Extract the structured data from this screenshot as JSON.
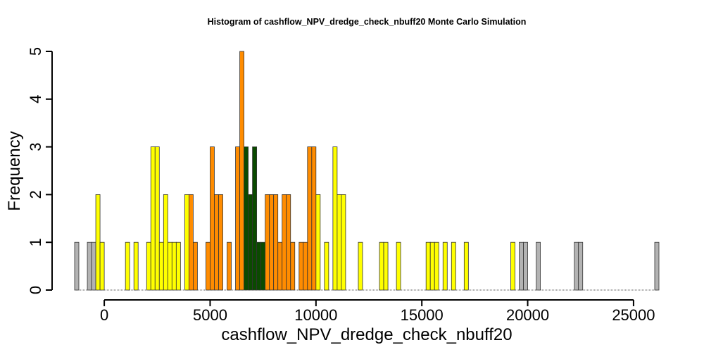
{
  "chart_data": {
    "type": "bar",
    "title": "Histogram of  cashflow_NPV_dredge_check_nbuff20  Monte Carlo Simulation",
    "xlabel": "cashflow_NPV_dredge_check_nbuff20",
    "ylabel": "Frequency",
    "xlim": [
      -1400,
      26200
    ],
    "ylim": [
      0,
      5
    ],
    "bin_width": 200,
    "x_ticks": [
      0,
      5000,
      10000,
      15000,
      20000,
      25000
    ],
    "x_tick_labels": [
      "0",
      "5000",
      "10000",
      "15000",
      "20000",
      "25000"
    ],
    "y_ticks": [
      0,
      1,
      2,
      3,
      4,
      5
    ],
    "y_tick_labels": [
      "0",
      "1",
      "2",
      "3",
      "4",
      "5"
    ],
    "grid": false,
    "colors": {
      "grey": "#b3b3b3",
      "yellow": "#ffff00",
      "orange": "#ff8c00",
      "darkgreen": "#0b4a00",
      "edge": "#333333"
    },
    "bins": [
      {
        "x0": -1400,
        "count": 1,
        "color": "grey"
      },
      {
        "x0": -800,
        "count": 1,
        "color": "grey"
      },
      {
        "x0": -600,
        "count": 1,
        "color": "grey"
      },
      {
        "x0": -400,
        "count": 2,
        "color": "yellow"
      },
      {
        "x0": -200,
        "count": 1,
        "color": "yellow"
      },
      {
        "x0": 1000,
        "count": 1,
        "color": "yellow"
      },
      {
        "x0": 1400,
        "count": 1,
        "color": "yellow"
      },
      {
        "x0": 2000,
        "count": 1,
        "color": "yellow"
      },
      {
        "x0": 2200,
        "count": 3,
        "color": "yellow"
      },
      {
        "x0": 2400,
        "count": 3,
        "color": "yellow"
      },
      {
        "x0": 2600,
        "count": 1,
        "color": "yellow"
      },
      {
        "x0": 2800,
        "count": 2,
        "color": "yellow"
      },
      {
        "x0": 3000,
        "count": 1,
        "color": "yellow"
      },
      {
        "x0": 3200,
        "count": 1,
        "color": "yellow"
      },
      {
        "x0": 3400,
        "count": 1,
        "color": "yellow"
      },
      {
        "x0": 3800,
        "count": 2,
        "color": "yellow"
      },
      {
        "x0": 4000,
        "count": 2,
        "color": "orange"
      },
      {
        "x0": 4200,
        "count": 1,
        "color": "orange"
      },
      {
        "x0": 4800,
        "count": 1,
        "color": "orange"
      },
      {
        "x0": 5000,
        "count": 3,
        "color": "orange"
      },
      {
        "x0": 5200,
        "count": 2,
        "color": "orange"
      },
      {
        "x0": 5400,
        "count": 2,
        "color": "orange"
      },
      {
        "x0": 5800,
        "count": 1,
        "color": "orange"
      },
      {
        "x0": 6200,
        "count": 3,
        "color": "orange"
      },
      {
        "x0": 6400,
        "count": 5,
        "color": "orange"
      },
      {
        "x0": 6600,
        "count": 3,
        "color": "darkgreen"
      },
      {
        "x0": 6800,
        "count": 2,
        "color": "darkgreen"
      },
      {
        "x0": 7000,
        "count": 3,
        "color": "darkgreen"
      },
      {
        "x0": 7200,
        "count": 1,
        "color": "darkgreen"
      },
      {
        "x0": 7400,
        "count": 1,
        "color": "darkgreen"
      },
      {
        "x0": 7600,
        "count": 2,
        "color": "orange"
      },
      {
        "x0": 7800,
        "count": 2,
        "color": "orange"
      },
      {
        "x0": 8000,
        "count": 2,
        "color": "orange"
      },
      {
        "x0": 8200,
        "count": 1,
        "color": "orange"
      },
      {
        "x0": 8400,
        "count": 2,
        "color": "orange"
      },
      {
        "x0": 8600,
        "count": 2,
        "color": "orange"
      },
      {
        "x0": 8800,
        "count": 1,
        "color": "orange"
      },
      {
        "x0": 9200,
        "count": 1,
        "color": "orange"
      },
      {
        "x0": 9400,
        "count": 1,
        "color": "orange"
      },
      {
        "x0": 9600,
        "count": 3,
        "color": "orange"
      },
      {
        "x0": 9800,
        "count": 3,
        "color": "orange"
      },
      {
        "x0": 10000,
        "count": 2,
        "color": "yellow"
      },
      {
        "x0": 10400,
        "count": 1,
        "color": "yellow"
      },
      {
        "x0": 10800,
        "count": 3,
        "color": "yellow"
      },
      {
        "x0": 11000,
        "count": 2,
        "color": "yellow"
      },
      {
        "x0": 11200,
        "count": 2,
        "color": "yellow"
      },
      {
        "x0": 12000,
        "count": 1,
        "color": "yellow"
      },
      {
        "x0": 13000,
        "count": 1,
        "color": "yellow"
      },
      {
        "x0": 13200,
        "count": 1,
        "color": "yellow"
      },
      {
        "x0": 13800,
        "count": 1,
        "color": "yellow"
      },
      {
        "x0": 15200,
        "count": 1,
        "color": "yellow"
      },
      {
        "x0": 15400,
        "count": 1,
        "color": "yellow"
      },
      {
        "x0": 15600,
        "count": 1,
        "color": "yellow"
      },
      {
        "x0": 16000,
        "count": 1,
        "color": "yellow"
      },
      {
        "x0": 16400,
        "count": 1,
        "color": "yellow"
      },
      {
        "x0": 17000,
        "count": 1,
        "color": "yellow"
      },
      {
        "x0": 19200,
        "count": 1,
        "color": "yellow"
      },
      {
        "x0": 19600,
        "count": 1,
        "color": "grey"
      },
      {
        "x0": 19800,
        "count": 1,
        "color": "grey"
      },
      {
        "x0": 20400,
        "count": 1,
        "color": "grey"
      },
      {
        "x0": 22200,
        "count": 1,
        "color": "grey"
      },
      {
        "x0": 22400,
        "count": 1,
        "color": "grey"
      },
      {
        "x0": 26000,
        "count": 1,
        "color": "grey"
      }
    ]
  }
}
